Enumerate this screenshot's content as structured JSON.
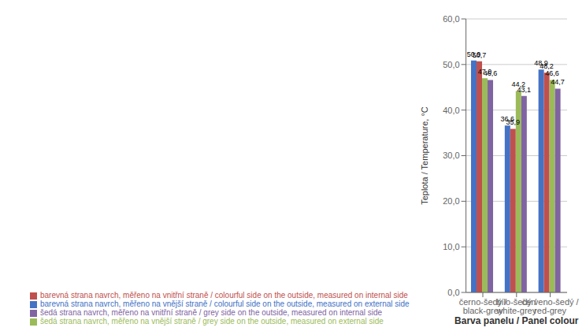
{
  "chart_data": {
    "type": "bar",
    "categories": [
      "černo-šedý / black-grey",
      "bílo-šedý / white-grey",
      "červeno-šedý / red-grey"
    ],
    "series": [
      {
        "name": "barevná strana navrch, měřeno na vnější straně / colourful side on the outside, measured on external side",
        "color": "#4472C4",
        "values": [
          50.9,
          36.6,
          48.9
        ],
        "value_labels": [
          "50,9",
          "36,6",
          "48,9"
        ]
      },
      {
        "name": "barevná strana navrch, měřeno na vnitřní straně / colourful side on the outside, measured on internal side",
        "color": "#C0504D",
        "values": [
          50.7,
          35.9,
          48.2
        ],
        "value_labels": [
          "50,7",
          "35,9",
          "48,2"
        ]
      },
      {
        "name": "šedá strana navrch, měřeno na vnější straně / grey side on the outside, measured on external side",
        "color": "#9BBB59",
        "values": [
          47.0,
          44.2,
          46.6
        ],
        "value_labels": [
          "47,0",
          "44,2",
          "46,6"
        ]
      },
      {
        "name": "šedá strana navrch, měřeno na vnitřní straně / grey side on the outside, measured on internal side",
        "color": "#8064A2",
        "values": [
          46.6,
          43.1,
          44.7
        ],
        "value_labels": [
          "46,6",
          "43,1",
          "44,7"
        ]
      }
    ],
    "xlabel": "Barva panelu / Panel colour",
    "ylabel": "Teplota / Temperature, °C",
    "ylim": [
      0,
      60
    ],
    "yticks": [
      {
        "value": 0,
        "label": "0,0"
      },
      {
        "value": 10,
        "label": "10,0"
      },
      {
        "value": 20,
        "label": "20,0"
      },
      {
        "value": 30,
        "label": "30,0"
      },
      {
        "value": 40,
        "label": "40,0"
      },
      {
        "value": 50,
        "label": "50,0"
      },
      {
        "value": 60,
        "label": "60,0"
      }
    ],
    "grid": true,
    "data_labels": true,
    "legend": "bottom"
  }
}
